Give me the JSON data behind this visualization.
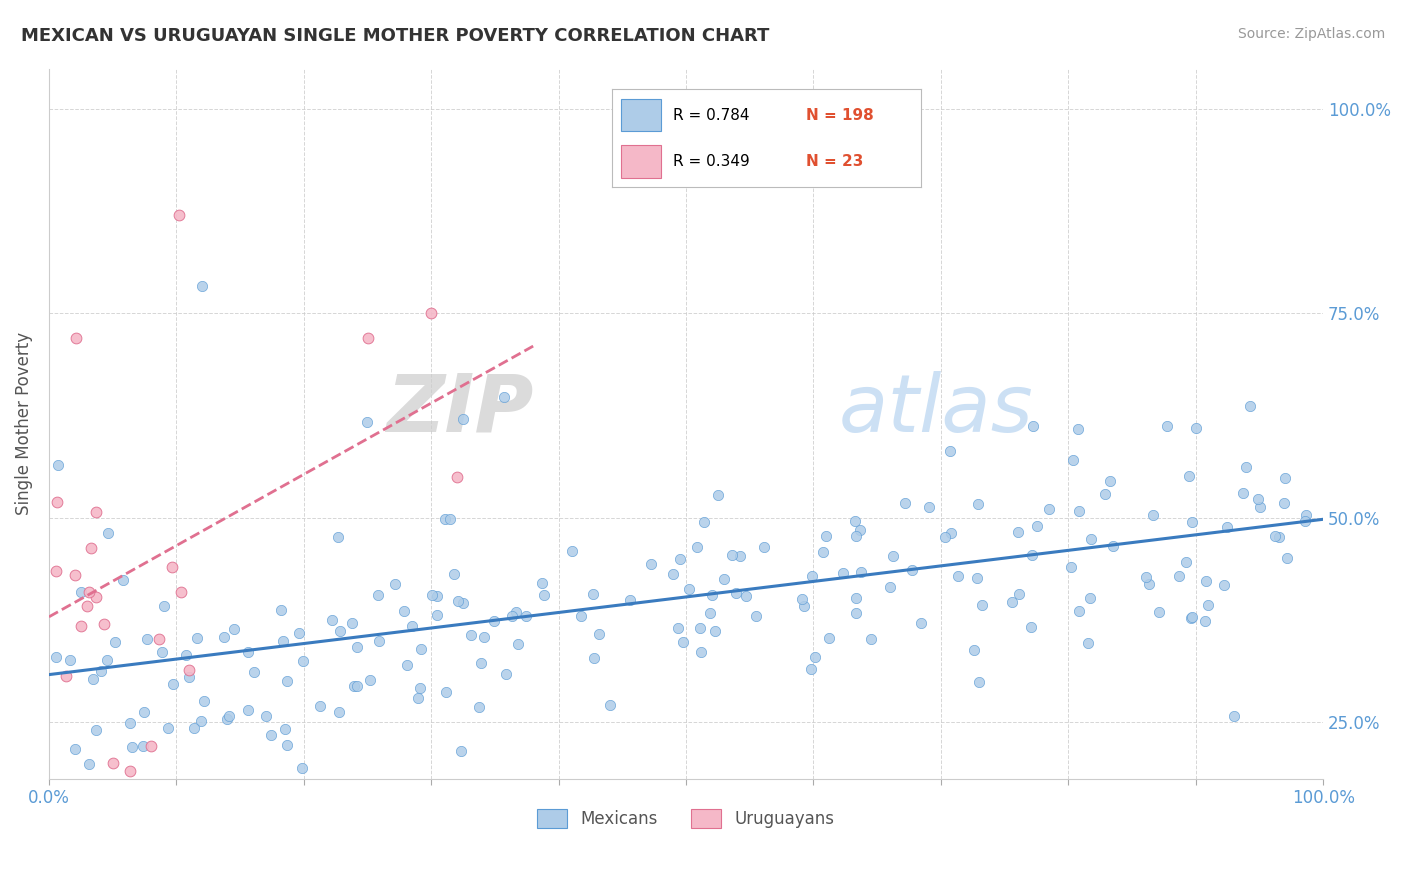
{
  "title": "MEXICAN VS URUGUAYAN SINGLE MOTHER POVERTY CORRELATION CHART",
  "source": "Source: ZipAtlas.com",
  "ylabel": "Single Mother Poverty",
  "watermark_zip": "ZIP",
  "watermark_atlas": "atlas",
  "mexican_R": 0.784,
  "mexican_N": 198,
  "uruguayan_R": 0.349,
  "uruguayan_N": 23,
  "mexican_color": "#aecce8",
  "mexican_edge_color": "#5b9bd5",
  "mexican_line_color": "#3a7bbf",
  "uruguayan_color": "#f5b8c8",
  "uruguayan_edge_color": "#e07090",
  "uruguayan_line_color": "#e07090",
  "background_color": "#ffffff",
  "grid_color": "#cccccc",
  "title_color": "#333333",
  "axis_label_color": "#555555",
  "right_tick_color": "#5b9bd5",
  "legend_text_color": "#000000",
  "legend_R_value_color": "#2255cc",
  "legend_N_color": "#e05030",
  "xmin": 0.0,
  "xmax": 1.0,
  "ymin": 0.18,
  "ymax": 1.05
}
